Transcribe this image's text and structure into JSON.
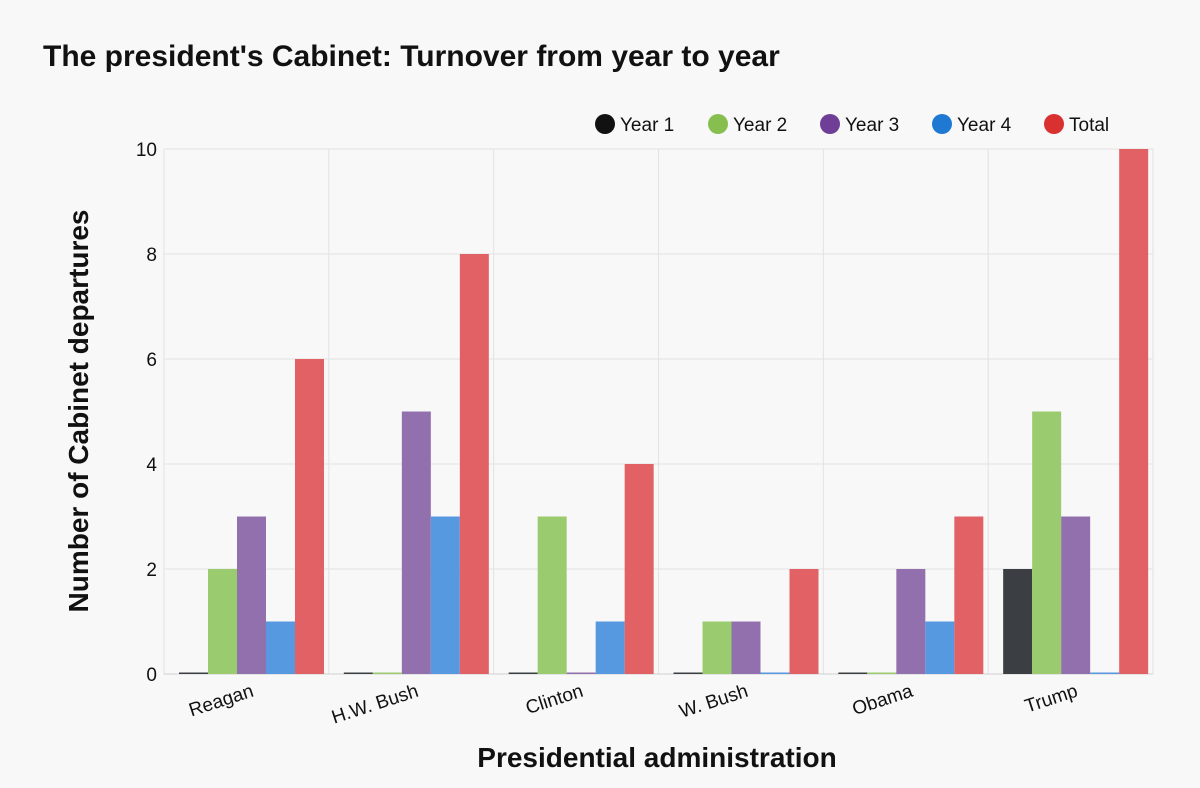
{
  "chart_data": {
    "type": "bar",
    "title": "The president's Cabinet: Turnover from year to year",
    "xlabel": "Presidential administration",
    "ylabel": "Number of Cabinet departures",
    "ylim": [
      0,
      10
    ],
    "yticks": [
      0,
      2,
      4,
      6,
      8,
      10
    ],
    "grid": true,
    "legend_position": "top-right",
    "categories": [
      "Reagan",
      "H.W. Bush",
      "Clinton",
      "W. Bush",
      "Obama",
      "Trump"
    ],
    "series": [
      {
        "name": "Year 1",
        "color": "#111111",
        "bar_color": "#3b3f44",
        "values": [
          0,
          0,
          0,
          0,
          0,
          2
        ]
      },
      {
        "name": "Year 2",
        "color": "#86bf4f",
        "bar_color": "#9bcb6f",
        "values": [
          2,
          0,
          3,
          1,
          0,
          5
        ]
      },
      {
        "name": "Year 3",
        "color": "#6f3f98",
        "bar_color": "#9270ad",
        "values": [
          3,
          5,
          0,
          1,
          2,
          3
        ]
      },
      {
        "name": "Year 4",
        "color": "#1f78d1",
        "bar_color": "#5699e0",
        "values": [
          1,
          3,
          1,
          0,
          1,
          0
        ]
      },
      {
        "name": "Total",
        "color": "#d93030",
        "bar_color": "#e26165",
        "values": [
          6,
          8,
          4,
          2,
          3,
          10
        ]
      }
    ]
  }
}
